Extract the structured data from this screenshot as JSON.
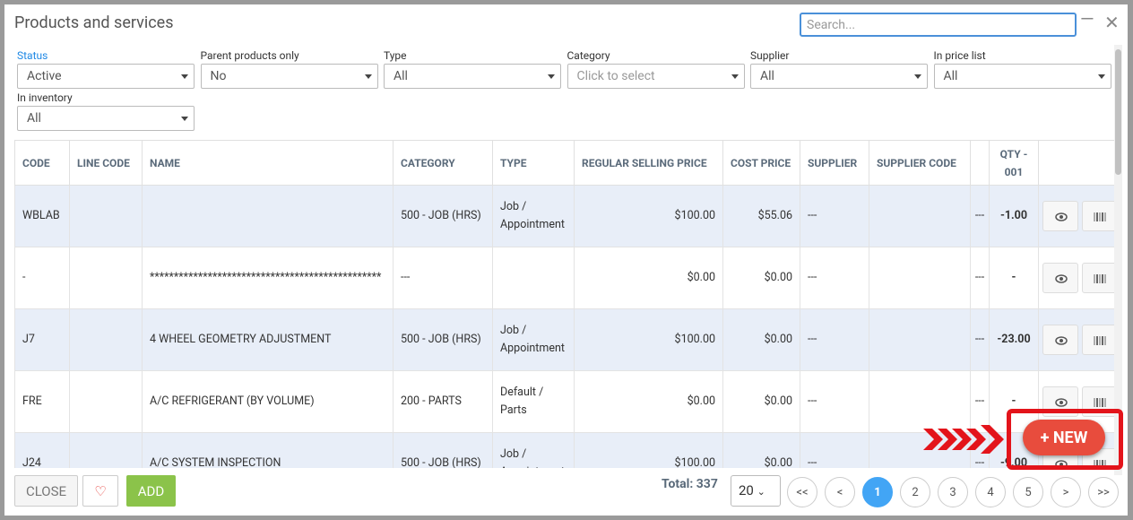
{
  "header": {
    "title": "Products and services",
    "search_placeholder": "Search..."
  },
  "filters": [
    {
      "label": "Status",
      "value": "Active"
    },
    {
      "label": "Parent products only",
      "value": "No"
    },
    {
      "label": "Type",
      "value": "All"
    },
    {
      "label": "Category",
      "placeholder": "Click to select"
    },
    {
      "label": "Supplier",
      "value": "All"
    },
    {
      "label": "In price list",
      "value": "All"
    },
    {
      "label": "In inventory",
      "value": "All"
    }
  ],
  "table": {
    "columns": [
      "CODE",
      "LINE CODE",
      "NAME",
      "CATEGORY",
      "TYPE",
      "REGULAR SELLING PRICE",
      "COST PRICE",
      "SUPPLIER",
      "SUPPLIER CODE",
      null,
      "QTY - 001"
    ],
    "rows": [
      [
        "WBLAB",
        null,
        null,
        "500 - JOB (HRS)",
        "Job / Appointment",
        "$100.00",
        "$55.06",
        "---",
        null,
        "---",
        "-1.00"
      ],
      [
        "-",
        null,
        "************************************************",
        "---",
        null,
        "$0.00",
        "$0.00",
        "---",
        null,
        "---",
        "-"
      ],
      [
        "J7",
        null,
        "4 WHEEL GEOMETRY ADJUSTMENT",
        "500 - JOB (HRS)",
        "Job / Appointment",
        "$100.00",
        "$0.00",
        "---",
        null,
        "---",
        "-23.00"
      ],
      [
        "FRE",
        null,
        "A/C REFRIGERANT (BY VOLUME)",
        "200 - PARTS",
        "Default / Parts",
        "$0.00",
        "$0.00",
        "---",
        null,
        "---",
        "-"
      ],
      [
        "J24",
        null,
        "A/C SYSTEM INSPECTION",
        "500 - JOB (HRS)",
        "Job / Appointment",
        "$100.00",
        "$0.00",
        "---",
        null,
        "---",
        "-9.00"
      ]
    ]
  },
  "footer": {
    "close": "CLOSE",
    "add": "ADD",
    "total": "Total: 337",
    "page_size": 20,
    "pages": [
      "<<",
      "<",
      1,
      2,
      3,
      4,
      5,
      ">",
      ">>"
    ],
    "current_page": 1
  },
  "callout": {
    "button": "+ NEW"
  }
}
